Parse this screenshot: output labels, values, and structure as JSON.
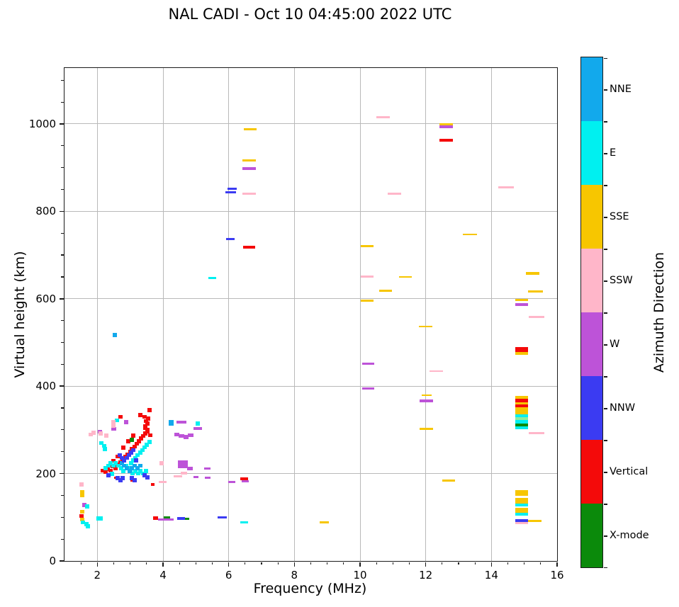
{
  "title": "NAL CADI - Oct 10 04:45:00 2022 UTC",
  "chart_data": {
    "type": "scatter",
    "title": "NAL CADI - Oct 10 04:45:00 2022 UTC",
    "xlabel": "Frequency (MHz)",
    "ylabel": "Virtual height (km)",
    "xlim": [
      1,
      16
    ],
    "ylim": [
      0,
      1128
    ],
    "x_major_ticks": [
      2,
      4,
      6,
      8,
      10,
      12,
      14,
      16
    ],
    "x_minor_step": 0.5,
    "y_major_ticks": [
      0,
      200,
      400,
      600,
      800,
      1000
    ],
    "y_minor_step": 50,
    "grid": true,
    "legend_position": "right-colorbar",
    "colorbar": {
      "label": "Azimuth Direction",
      "categories": [
        {
          "label": "NNE",
          "color": "#12a9ec"
        },
        {
          "label": "E",
          "color": "#00f0f0"
        },
        {
          "label": "SSE",
          "color": "#f7c600"
        },
        {
          "label": "SSW",
          "color": "#ffb6c9"
        },
        {
          "label": "W",
          "color": "#bd53d8"
        },
        {
          "label": "NNW",
          "color": "#3b3bf2"
        },
        {
          "label": "Vertical",
          "color": "#f40a0a"
        },
        {
          "label": "X-mode",
          "color": "#0b8a0b"
        }
      ]
    },
    "colors": {
      "n": "#12a9ec",
      "e": "#00f0f0",
      "s": "#f7c600",
      "p": "#ffb6c9",
      "w": "#bd53d8",
      "b": "#3b3bf2",
      "v": "#f40a0a",
      "x": "#0b8a0b",
      "g": "#8ceea0"
    },
    "point_note": "points are [freq_MHz, height_km, azimuth_key, width_MHz?, thickness_km?]",
    "points": [
      [
        1.52,
        175,
        "p"
      ],
      [
        1.55,
        157,
        "s"
      ],
      [
        1.55,
        150,
        "s"
      ],
      [
        1.61,
        128,
        "w"
      ],
      [
        1.7,
        125,
        "e"
      ],
      [
        1.55,
        113,
        "s"
      ],
      [
        1.52,
        103,
        "v"
      ],
      [
        1.53,
        95,
        "s"
      ],
      [
        1.57,
        88,
        "e"
      ],
      [
        1.66,
        84,
        "e"
      ],
      [
        1.72,
        79,
        "e"
      ],
      [
        2.07,
        97,
        "e",
        0.18
      ],
      [
        2.54,
        517,
        "n"
      ],
      [
        2.17,
        207,
        "v"
      ],
      [
        2.25,
        204,
        "v"
      ],
      [
        2.32,
        211,
        "v"
      ],
      [
        2.4,
        207,
        "v"
      ],
      [
        2.47,
        216,
        "v"
      ],
      [
        2.55,
        212,
        "v"
      ],
      [
        2.62,
        220,
        "v"
      ],
      [
        2.7,
        226,
        "v"
      ],
      [
        2.78,
        232,
        "v"
      ],
      [
        2.86,
        238,
        "v"
      ],
      [
        2.93,
        244,
        "v"
      ],
      [
        3.0,
        250,
        "v"
      ],
      [
        3.06,
        256,
        "v"
      ],
      [
        3.13,
        262,
        "v"
      ],
      [
        3.2,
        268,
        "v"
      ],
      [
        3.27,
        274,
        "v"
      ],
      [
        3.33,
        280,
        "v"
      ],
      [
        3.4,
        286,
        "v"
      ],
      [
        3.46,
        292,
        "v"
      ],
      [
        3.52,
        298,
        "v",
        0.13,
        12
      ],
      [
        3.47,
        306,
        "v",
        0.13,
        12
      ],
      [
        3.53,
        314,
        "v"
      ],
      [
        3.48,
        320,
        "v"
      ],
      [
        3.54,
        326,
        "v"
      ],
      [
        3.44,
        330,
        "v"
      ],
      [
        3.3,
        334,
        "v"
      ],
      [
        3.58,
        345,
        "v"
      ],
      [
        2.71,
        330,
        "v"
      ],
      [
        3.62,
        288,
        "v"
      ],
      [
        3.1,
        287,
        "v"
      ],
      [
        2.95,
        274,
        "v"
      ],
      [
        2.8,
        259,
        "v"
      ],
      [
        2.62,
        239,
        "v"
      ],
      [
        2.48,
        229,
        "v"
      ],
      [
        3.69,
        175,
        "v",
        0.1,
        6
      ],
      [
        2.55,
        190,
        "v",
        0.1,
        5
      ],
      [
        3.05,
        184,
        "v",
        0.1,
        5
      ],
      [
        2.13,
        270,
        "e"
      ],
      [
        2.2,
        263,
        "e"
      ],
      [
        2.24,
        256,
        "e"
      ],
      [
        2.6,
        322,
        "e"
      ],
      [
        2.88,
        218,
        "e"
      ],
      [
        2.95,
        212,
        "e"
      ],
      [
        3.02,
        224,
        "e"
      ],
      [
        3.09,
        230,
        "e"
      ],
      [
        3.16,
        236,
        "e"
      ],
      [
        3.23,
        242,
        "e"
      ],
      [
        3.3,
        248,
        "e"
      ],
      [
        3.37,
        254,
        "e"
      ],
      [
        3.44,
        260,
        "e"
      ],
      [
        3.51,
        266,
        "e"
      ],
      [
        3.58,
        272,
        "e"
      ],
      [
        2.8,
        206,
        "e"
      ],
      [
        2.72,
        212,
        "e"
      ],
      [
        2.64,
        218,
        "e"
      ],
      [
        2.56,
        224,
        "e"
      ],
      [
        2.48,
        218,
        "e"
      ],
      [
        2.4,
        224,
        "e"
      ],
      [
        2.33,
        218,
        "e"
      ],
      [
        3.0,
        206,
        "e"
      ],
      [
        3.08,
        200,
        "e"
      ],
      [
        3.16,
        206,
        "e"
      ],
      [
        3.24,
        200,
        "e"
      ],
      [
        3.32,
        206,
        "e"
      ],
      [
        2.26,
        212,
        "e"
      ],
      [
        2.44,
        199,
        "e"
      ],
      [
        3.4,
        200,
        "e"
      ],
      [
        3.48,
        206,
        "e"
      ],
      [
        5.06,
        314,
        "e"
      ],
      [
        2.9,
        212,
        "n"
      ],
      [
        2.98,
        206,
        "n"
      ],
      [
        3.06,
        212,
        "n"
      ],
      [
        3.14,
        218,
        "n"
      ],
      [
        3.22,
        212,
        "n"
      ],
      [
        2.82,
        218,
        "n"
      ],
      [
        2.74,
        224,
        "n"
      ],
      [
        3.3,
        218,
        "n"
      ],
      [
        4.25,
        316,
        "n",
        0.14,
        12
      ],
      [
        2.96,
        242,
        "b"
      ],
      [
        3.03,
        248,
        "b"
      ],
      [
        3.1,
        254,
        "b"
      ],
      [
        2.89,
        236,
        "b"
      ],
      [
        2.82,
        230,
        "b"
      ],
      [
        2.75,
        236,
        "b"
      ],
      [
        3.17,
        230,
        "b"
      ],
      [
        2.68,
        242,
        "b"
      ],
      [
        3.06,
        190,
        "b"
      ],
      [
        3.14,
        185,
        "b"
      ],
      [
        2.62,
        190,
        "b"
      ],
      [
        2.7,
        185,
        "b"
      ],
      [
        2.78,
        190,
        "b"
      ],
      [
        3.44,
        196,
        "b"
      ],
      [
        3.52,
        191,
        "b"
      ],
      [
        2.33,
        196,
        "b"
      ],
      [
        2.87,
        318,
        "w"
      ],
      [
        2.5,
        302,
        "w"
      ],
      [
        2.07,
        296,
        "w"
      ],
      [
        4.56,
        318,
        "w",
        0.3,
        6
      ],
      [
        5.06,
        303,
        "w",
        0.25,
        6
      ],
      [
        4.42,
        289,
        "w",
        0.16
      ],
      [
        4.56,
        286,
        "w",
        0.16
      ],
      [
        4.7,
        284,
        "w",
        0.16
      ],
      [
        4.84,
        288,
        "w",
        0.16
      ],
      [
        5.35,
        212,
        "w",
        0.18,
        5
      ],
      [
        5.36,
        191,
        "w",
        0.18,
        5
      ],
      [
        6.1,
        180,
        "w",
        0.22,
        5
      ],
      [
        4.6,
        221,
        "w",
        0.3,
        18
      ],
      [
        4.82,
        212,
        "w",
        0.18,
        8
      ],
      [
        5.0,
        192,
        "w",
        0.14,
        5
      ],
      [
        3.98,
        95,
        "w",
        0.26,
        6
      ],
      [
        4.2,
        95,
        "w",
        0.26,
        6
      ],
      [
        6.5,
        182,
        "w",
        0.22,
        5
      ],
      [
        2.48,
        318,
        "p"
      ],
      [
        2.49,
        309,
        "p"
      ],
      [
        1.88,
        293,
        "p"
      ],
      [
        1.79,
        289,
        "p"
      ],
      [
        2.1,
        292,
        "p"
      ],
      [
        3.95,
        224,
        "p"
      ],
      [
        4.45,
        193,
        "p",
        0.26,
        5
      ],
      [
        3.98,
        180,
        "p",
        0.24,
        5
      ],
      [
        4.64,
        201,
        "p",
        0.2,
        5
      ],
      [
        2.28,
        287,
        "p"
      ],
      [
        3.05,
        277,
        "x"
      ],
      [
        4.12,
        100,
        "x",
        0.18,
        5
      ],
      [
        4.7,
        97,
        "x",
        0.2,
        5
      ],
      [
        3.77,
        98,
        "v",
        0.14,
        7
      ],
      [
        4.55,
        97,
        "b",
        0.22,
        6
      ],
      [
        5.8,
        100,
        "b",
        0.28,
        5
      ],
      [
        6.48,
        89,
        "e",
        0.24,
        5
      ],
      [
        8.92,
        88,
        "s",
        0.28,
        5
      ],
      [
        5.5,
        648,
        "e",
        0.24,
        5
      ],
      [
        6.1,
        852,
        "b",
        0.28,
        5
      ],
      [
        6.07,
        843,
        "b",
        0.32,
        5
      ],
      [
        6.05,
        736,
        "b",
        0.24,
        5
      ],
      [
        6.65,
        988,
        "s",
        0.38,
        5
      ],
      [
        6.62,
        916,
        "s",
        0.42,
        5
      ],
      [
        6.62,
        898,
        "w",
        0.42,
        6
      ],
      [
        6.62,
        841,
        "p",
        0.42,
        5
      ],
      [
        6.62,
        718,
        "v",
        0.38,
        6
      ],
      [
        6.48,
        188,
        "v",
        0.24,
        6
      ],
      [
        10.7,
        1016,
        "p",
        0.42,
        5
      ],
      [
        12.62,
        999,
        "s",
        0.42,
        4
      ],
      [
        12.62,
        993,
        "w",
        0.42,
        6
      ],
      [
        12.62,
        963,
        "v",
        0.42,
        6
      ],
      [
        11.05,
        840,
        "p",
        0.42,
        5
      ],
      [
        13.35,
        747,
        "s",
        0.42,
        4
      ],
      [
        10.22,
        721,
        "s",
        0.38,
        5
      ],
      [
        10.22,
        650,
        "p",
        0.38,
        5
      ],
      [
        11.38,
        650,
        "s",
        0.38,
        4
      ],
      [
        10.78,
        619,
        "s",
        0.4,
        5
      ],
      [
        10.22,
        595,
        "s",
        0.38,
        5
      ],
      [
        12.0,
        536,
        "s",
        0.42,
        4
      ],
      [
        10.25,
        452,
        "w",
        0.38,
        5
      ],
      [
        12.32,
        434,
        "p",
        0.42,
        4
      ],
      [
        10.25,
        394,
        "w",
        0.38,
        5
      ],
      [
        12.02,
        379,
        "s",
        0.3,
        4
      ],
      [
        12.02,
        366,
        "w",
        0.42,
        6
      ],
      [
        12.02,
        302,
        "s",
        0.42,
        5
      ],
      [
        12.7,
        184,
        "s",
        0.38,
        4
      ],
      [
        14.45,
        855,
        "p",
        0.48,
        5
      ],
      [
        15.25,
        658,
        "s",
        0.42,
        5
      ],
      [
        15.35,
        617,
        "s",
        0.45,
        5
      ],
      [
        14.92,
        597,
        "s",
        0.4,
        6
      ],
      [
        14.92,
        587,
        "w",
        0.4,
        6
      ],
      [
        15.38,
        558,
        "p",
        0.48,
        4
      ],
      [
        14.92,
        484,
        "v",
        0.4,
        11
      ],
      [
        14.92,
        475,
        "s",
        0.4,
        7
      ],
      [
        14.92,
        374,
        "s",
        0.4,
        8
      ],
      [
        14.92,
        367,
        "v",
        0.4,
        8
      ],
      [
        14.92,
        360,
        "s",
        0.4,
        6
      ],
      [
        14.92,
        354,
        "v",
        0.4,
        7
      ],
      [
        14.92,
        344,
        "s",
        0.4,
        16
      ],
      [
        14.92,
        332,
        "e",
        0.4,
        7
      ],
      [
        14.92,
        326,
        "g",
        0.4,
        6
      ],
      [
        14.92,
        318,
        "e",
        0.4,
        9
      ],
      [
        14.92,
        311,
        "x",
        0.4,
        7
      ],
      [
        14.92,
        305,
        "e",
        0.4,
        6
      ],
      [
        15.38,
        293,
        "p",
        0.48,
        5
      ],
      [
        14.92,
        155,
        "s",
        0.4,
        13
      ],
      [
        14.92,
        138,
        "s",
        0.4,
        13
      ],
      [
        14.92,
        128,
        "e",
        0.4,
        6
      ],
      [
        14.92,
        116,
        "s",
        0.4,
        11
      ],
      [
        14.92,
        107,
        "e",
        0.4,
        6
      ],
      [
        14.92,
        92,
        "b",
        0.4,
        7
      ],
      [
        14.92,
        86,
        "p",
        0.4,
        5
      ],
      [
        15.32,
        91,
        "s",
        0.42,
        5
      ]
    ]
  }
}
